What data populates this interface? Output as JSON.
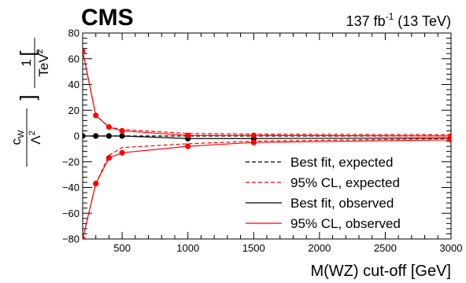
{
  "header": {
    "experiment": "CMS",
    "lumi_value": "137 fb",
    "lumi_exp": "-1",
    "lumi_energy": " (13 TeV)"
  },
  "axes": {
    "xlabel": "M(WZ) cut-off [GeV]",
    "ylabel": {
      "coef": "c",
      "coef_sub": "W",
      "lambda": "Λ",
      "lambda_sup": "2",
      "unit_num": "1",
      "unit_den": "TeV",
      "unit_sup": "2"
    },
    "xticks": [
      "500",
      "1000",
      "1500",
      "2000",
      "2500",
      "3000"
    ],
    "yticks": [
      "−80",
      "−60",
      "−40",
      "−20",
      "0",
      "20",
      "40",
      "60",
      "80"
    ]
  },
  "colors": {
    "expected_cl": "#ff0000",
    "observed_cl": "#ff0000",
    "best_fit": "#000000"
  },
  "legend": {
    "placement": "bottom-right",
    "items": [
      {
        "label": "Best fit, expected",
        "style": "dashed",
        "color": "#000000"
      },
      {
        "label": "95% CL, expected",
        "style": "dashed",
        "color": "#ff0000"
      },
      {
        "label": "Best fit, observed",
        "style": "solid",
        "color": "#000000"
      },
      {
        "label": "95% CL, observed",
        "style": "solid",
        "color": "#ff0000"
      }
    ]
  },
  "chart_data": {
    "type": "line",
    "xlim": [
      200,
      3000
    ],
    "ylim": [
      -80,
      80
    ],
    "x": [
      200,
      300,
      400,
      500,
      1000,
      1500,
      3000
    ],
    "series": [
      {
        "name": "Best fit, expected",
        "style": "dashed",
        "color": "#000000",
        "markers": false,
        "values": [
          0,
          0,
          0,
          0,
          0,
          0,
          0
        ]
      },
      {
        "name": "95% CL, expected",
        "style": "dashed",
        "color": "#ff0000",
        "markers": false,
        "values": [
          66,
          16,
          7,
          5,
          2,
          1.5,
          1
        ]
      },
      {
        "name": "95% CL, expected",
        "style": "dashed",
        "color": "#ff0000",
        "markers": false,
        "values": [
          -80,
          -37,
          -15,
          -9,
          -6,
          -4,
          -2
        ]
      },
      {
        "name": "Best fit, observed",
        "style": "solid",
        "color": "#000000",
        "markers": true,
        "values": [
          0,
          0,
          0,
          0,
          -2,
          -2,
          -1.5
        ]
      },
      {
        "name": "95% CL, observed",
        "style": "solid",
        "color": "#ff0000",
        "markers": true,
        "values": [
          66,
          16,
          7,
          4,
          0.5,
          0.5,
          0
        ]
      },
      {
        "name": "95% CL, observed",
        "style": "solid",
        "color": "#ff0000",
        "markers": true,
        "values": [
          -80,
          -37,
          -17,
          -13,
          -8,
          -5,
          -3
        ]
      }
    ]
  }
}
